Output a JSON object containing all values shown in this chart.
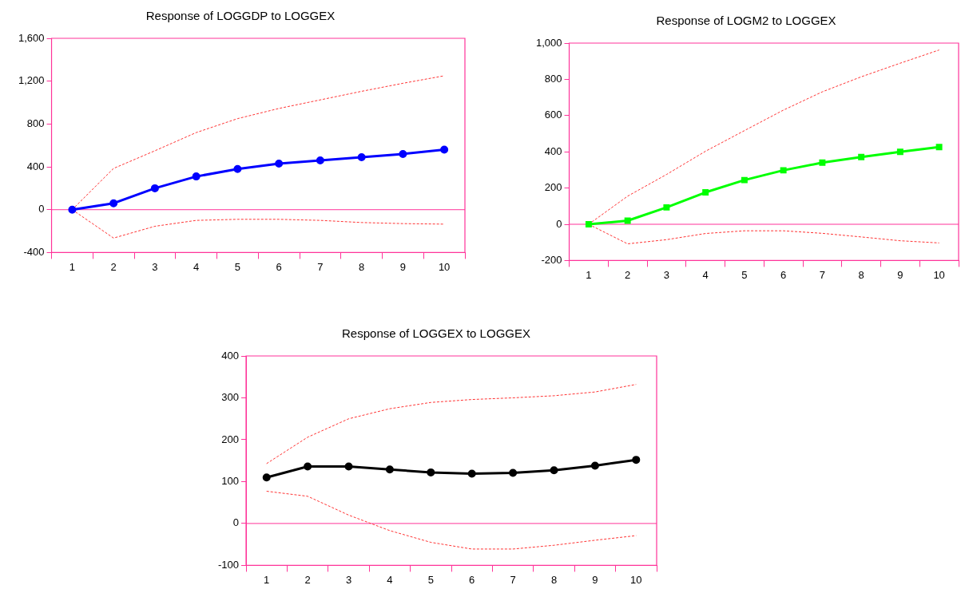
{
  "chart_data": [
    {
      "type": "line",
      "title": "Response of LOGGDP to LOGGEX",
      "categories": [
        "1",
        "2",
        "3",
        "4",
        "5",
        "6",
        "7",
        "8",
        "9",
        "10"
      ],
      "ylim": [
        -400,
        1600
      ],
      "yticks": [
        -400,
        0,
        400,
        800,
        {
          "value": 1200,
          "label": "1,200"
        },
        {
          "value": 1600,
          "label": "1,600"
        }
      ],
      "grid": false,
      "legend": false,
      "ref_lines": [
        {
          "axis": "y",
          "value": 0,
          "color": "#ff3399"
        }
      ],
      "series": [
        {
          "color": "#0000ff",
          "marker": "circle",
          "line_style": "solid",
          "values": [
            0,
            60,
            200,
            310,
            380,
            430,
            460,
            490,
            520,
            560
          ]
        },
        {
          "color": "#ff3333",
          "marker": "none",
          "line_style": "dashed",
          "values": [
            0,
            385,
            550,
            720,
            850,
            945,
            1025,
            1105,
            1180,
            1250
          ]
        },
        {
          "color": "#ff3333",
          "marker": "none",
          "line_style": "dashed",
          "values": [
            0,
            -265,
            -155,
            -100,
            -90,
            -90,
            -100,
            -120,
            -130,
            -135
          ]
        }
      ]
    },
    {
      "type": "line",
      "title": "Response of LOGM2 to LOGGEX",
      "categories": [
        "1",
        "2",
        "3",
        "4",
        "5",
        "6",
        "7",
        "8",
        "9",
        "10"
      ],
      "ylim": [
        -200,
        1000
      ],
      "yticks": [
        -200,
        0,
        200,
        400,
        600,
        800,
        {
          "value": 1000,
          "label": "1,000"
        }
      ],
      "grid": false,
      "legend": false,
      "ref_lines": [
        {
          "axis": "y",
          "value": 0,
          "color": "#ff3399"
        }
      ],
      "series": [
        {
          "color": "#00ff00",
          "marker": "square",
          "line_style": "solid",
          "values": [
            0,
            20,
            93,
            176,
            244,
            298,
            340,
            371,
            400,
            426
          ]
        },
        {
          "color": "#ff3333",
          "marker": "none",
          "line_style": "dashed",
          "values": [
            0,
            155,
            275,
            403,
            517,
            630,
            731,
            814,
            889,
            962
          ]
        },
        {
          "color": "#ff3333",
          "marker": "none",
          "line_style": "dashed",
          "values": [
            0,
            -108,
            -85,
            -51,
            -36,
            -36,
            -50,
            -70,
            -91,
            -103
          ]
        }
      ]
    },
    {
      "type": "line",
      "title": "Response of LOGGEX to LOGGEX",
      "categories": [
        "1",
        "2",
        "3",
        "4",
        "5",
        "6",
        "7",
        "8",
        "9",
        "10"
      ],
      "ylim": [
        -100,
        400
      ],
      "yticks": [
        -100,
        0,
        100,
        200,
        300,
        400
      ],
      "grid": false,
      "legend": false,
      "ref_lines": [
        {
          "axis": "y",
          "value": 0,
          "color": "#ff3399"
        }
      ],
      "series": [
        {
          "color": "#000000",
          "marker": "circle",
          "line_style": "solid",
          "values": [
            110,
            136,
            136,
            129,
            122,
            119,
            121,
            127,
            138,
            152
          ]
        },
        {
          "color": "#ff3333",
          "marker": "none",
          "line_style": "dashed",
          "values": [
            143,
            206,
            250,
            274,
            289,
            296,
            300,
            305,
            314,
            332
          ]
        },
        {
          "color": "#ff3333",
          "marker": "none",
          "line_style": "dashed",
          "values": [
            77,
            65,
            20,
            -17,
            -45,
            -61,
            -61,
            -52,
            -40,
            -29
          ]
        }
      ]
    }
  ]
}
